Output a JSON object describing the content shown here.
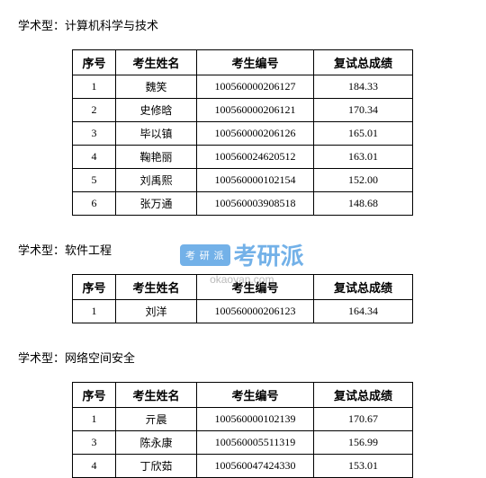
{
  "sections": [
    {
      "title": "学术型：计算机科学与技术",
      "columns": [
        "序号",
        "考生姓名",
        "考生编号",
        "复试总成绩"
      ],
      "rows": [
        {
          "seq": "1",
          "name": "魏笑",
          "id": "100560000206127",
          "score": "184.33"
        },
        {
          "seq": "2",
          "name": "史修晗",
          "id": "100560000206121",
          "score": "170.34"
        },
        {
          "seq": "3",
          "name": "毕以镇",
          "id": "100560000206126",
          "score": "165.01"
        },
        {
          "seq": "4",
          "name": "鞠艳丽",
          "id": "100560024620512",
          "score": "163.01"
        },
        {
          "seq": "5",
          "name": "刘禹熙",
          "id": "100560000102154",
          "score": "152.00"
        },
        {
          "seq": "6",
          "name": "张万通",
          "id": "100560003908518",
          "score": "148.68"
        }
      ]
    },
    {
      "title": "学术型：软件工程",
      "columns": [
        "序号",
        "考生姓名",
        "考生编号",
        "复试总成绩"
      ],
      "rows": [
        {
          "seq": "1",
          "name": "刘洋",
          "id": "100560000206123",
          "score": "164.34"
        }
      ]
    },
    {
      "title": "学术型：网络空间安全",
      "columns": [
        "序号",
        "考生姓名",
        "考生编号",
        "复试总成绩"
      ],
      "rows": [
        {
          "seq": "1",
          "name": "亓晨",
          "id": "100560000102139",
          "score": "170.67"
        },
        {
          "seq": "3",
          "name": "陈永康",
          "id": "100560005511319",
          "score": "156.99"
        },
        {
          "seq": "4",
          "name": "丁欣茹",
          "id": "100560047424330",
          "score": "153.01"
        }
      ]
    }
  ],
  "watermark": {
    "badge": "考 研 派",
    "text": "考研派",
    "url": "okaoyan.com"
  },
  "styling": {
    "background_color": "#ffffff",
    "text_color": "#000000",
    "border_color": "#000000",
    "watermark_blue": "#5ba4e5",
    "watermark_gray": "#b0b0b0",
    "body_font_size": 13,
    "cell_font_size": 12,
    "watermark_font_size": 26,
    "col_widths": {
      "seq": 48,
      "name": 90,
      "id": 130,
      "score": 110
    }
  }
}
